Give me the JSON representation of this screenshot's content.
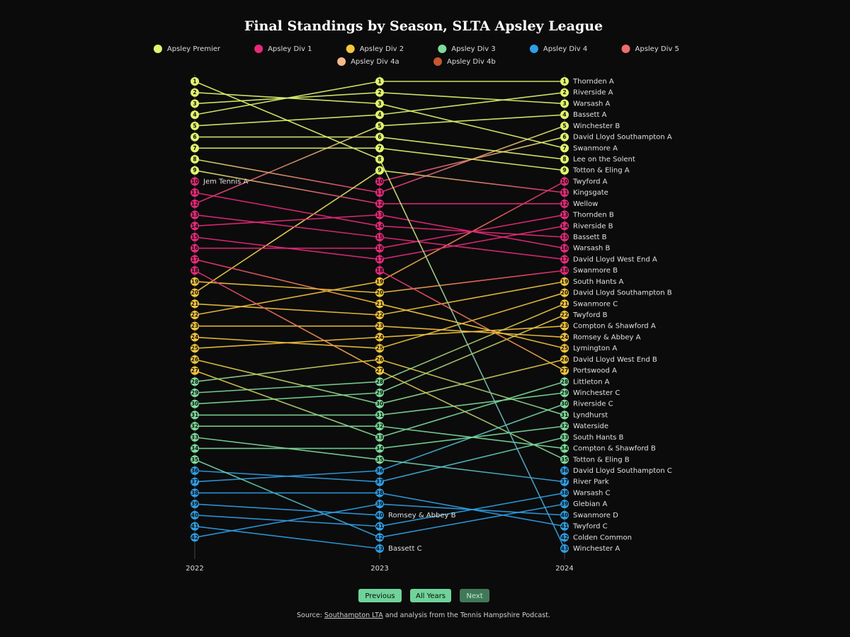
{
  "chart_data": {
    "type": "bump",
    "title": "Final Standings by Season, SLTA Apsley League",
    "years": [
      "2022",
      "2023",
      "2024"
    ],
    "legend": [
      {
        "name": "Apsley Premier",
        "color": "#e2f56f"
      },
      {
        "name": "Apsley Div 1",
        "color": "#e8297a"
      },
      {
        "name": "Apsley Div 2",
        "color": "#f5c63c"
      },
      {
        "name": "Apsley Div 3",
        "color": "#7ddc9b"
      },
      {
        "name": "Apsley Div 4",
        "color": "#2e9fe6"
      },
      {
        "name": "Apsley Div 5",
        "color": "#f06e6a"
      },
      {
        "name": "Apsley Div 4a",
        "color": "#f8b98a"
      },
      {
        "name": "Apsley Div 4b",
        "color": "#c8562e"
      }
    ],
    "teams": [
      {
        "name": "Thornden A",
        "ranks": [
          4,
          1,
          1
        ],
        "divisions": [
          "Apsley Premier",
          "Apsley Premier",
          "Apsley Premier"
        ]
      },
      {
        "name": "Riverside A",
        "ranks": [
          5,
          4,
          2
        ],
        "divisions": [
          "Apsley Premier",
          "Apsley Premier",
          "Apsley Premier"
        ]
      },
      {
        "name": "Warsash A",
        "ranks": [
          3,
          2,
          3
        ],
        "divisions": [
          "Apsley Premier",
          "Apsley Premier",
          "Apsley Premier"
        ]
      },
      {
        "name": "Bassett A",
        "ranks": [
          12,
          5,
          4
        ],
        "divisions": [
          "Apsley Div 1",
          "Apsley Premier",
          "Apsley Premier"
        ]
      },
      {
        "name": "Winchester B",
        "ranks": [
          8,
          11,
          5
        ],
        "divisions": [
          "Apsley Premier",
          "Apsley Div 1",
          "Apsley Premier"
        ]
      },
      {
        "name": "David Lloyd Southampton A",
        "ranks": [
          null,
          10,
          6
        ],
        "divisions": [
          null,
          "Apsley Div 1",
          "Apsley Premier"
        ]
      },
      {
        "name": "Swanmore A",
        "ranks": [
          2,
          3,
          7
        ],
        "divisions": [
          "Apsley Premier",
          "Apsley Premier",
          "Apsley Premier"
        ]
      },
      {
        "name": "Lee on the Solent",
        "ranks": [
          6,
          6,
          8
        ],
        "divisions": [
          "Apsley Premier",
          "Apsley Premier",
          "Apsley Premier"
        ]
      },
      {
        "name": "Totton & Eling A",
        "ranks": [
          7,
          7,
          9
        ],
        "divisions": [
          "Apsley Premier",
          "Apsley Premier",
          "Apsley Premier"
        ]
      },
      {
        "name": "Twyford A",
        "ranks": [
          22,
          19,
          10
        ],
        "divisions": [
          "Apsley Div 2",
          "Apsley Div 2",
          "Apsley Div 1"
        ]
      },
      {
        "name": "Kingsgate",
        "ranks": [
          20,
          9,
          11
        ],
        "divisions": [
          "Apsley Div 2",
          "Apsley Premier",
          "Apsley Div 1"
        ]
      },
      {
        "name": "Wellow",
        "ranks": [
          9,
          12,
          12
        ],
        "divisions": [
          "Apsley Premier",
          "Apsley Div 1",
          "Apsley Div 1"
        ]
      },
      {
        "name": "Thornden B",
        "ranks": [
          16,
          16,
          13
        ],
        "divisions": [
          "Apsley Div 1",
          "Apsley Div 1",
          "Apsley Div 1"
        ]
      },
      {
        "name": "Riverside B",
        "ranks": [
          15,
          17,
          14
        ],
        "divisions": [
          "Apsley Div 1",
          "Apsley Div 1",
          "Apsley Div 1"
        ]
      },
      {
        "name": "Bassett B",
        "ranks": [
          11,
          14,
          15
        ],
        "divisions": [
          "Apsley Div 1",
          "Apsley Div 1",
          "Apsley Div 1"
        ]
      },
      {
        "name": "Warsash B",
        "ranks": [
          14,
          13,
          16
        ],
        "divisions": [
          "Apsley Div 1",
          "Apsley Div 1",
          "Apsley Div 1"
        ]
      },
      {
        "name": "David Lloyd West End A",
        "ranks": [
          13,
          15,
          17
        ],
        "divisions": [
          "Apsley Div 1",
          "Apsley Div 1",
          "Apsley Div 1"
        ]
      },
      {
        "name": "Swanmore B",
        "ranks": [
          19,
          20,
          18
        ],
        "divisions": [
          "Apsley Div 2",
          "Apsley Div 2",
          "Apsley Div 1"
        ]
      },
      {
        "name": "South Hants A",
        "ranks": [
          21,
          22,
          19
        ],
        "divisions": [
          "Apsley Div 2",
          "Apsley Div 2",
          "Apsley Div 2"
        ]
      },
      {
        "name": "David Lloyd Southampton B",
        "ranks": [
          24,
          25,
          20
        ],
        "divisions": [
          "Apsley Div 2",
          "Apsley Div 2",
          "Apsley Div 2"
        ]
      },
      {
        "name": "Swanmore C",
        "ranks": [
          29,
          28,
          21
        ],
        "divisions": [
          "Apsley Div 3",
          "Apsley Div 3",
          "Apsley Div 2"
        ]
      },
      {
        "name": "Twyford B",
        "ranks": [
          30,
          29,
          22
        ],
        "divisions": [
          "Apsley Div 3",
          "Apsley Div 3",
          "Apsley Div 2"
        ]
      },
      {
        "name": "Compton & Shawford A",
        "ranks": [
          25,
          24,
          23
        ],
        "divisions": [
          "Apsley Div 2",
          "Apsley Div 2",
          "Apsley Div 2"
        ]
      },
      {
        "name": "Romsey & Abbey A",
        "ranks": [
          23,
          23,
          24
        ],
        "divisions": [
          "Apsley Div 2",
          "Apsley Div 2",
          "Apsley Div 2"
        ]
      },
      {
        "name": "Lymington A",
        "ranks": [
          17,
          21,
          25
        ],
        "divisions": [
          "Apsley Div 1",
          "Apsley Div 2",
          "Apsley Div 2"
        ]
      },
      {
        "name": "David Lloyd West End B",
        "ranks": [
          26,
          30,
          26
        ],
        "divisions": [
          "Apsley Div 2",
          "Apsley Div 3",
          "Apsley Div 2"
        ]
      },
      {
        "name": "Portswood A",
        "ranks": [
          null,
          18,
          27
        ],
        "divisions": [
          null,
          "Apsley Div 1",
          "Apsley Div 2"
        ]
      },
      {
        "name": "Littleton A",
        "ranks": [
          27,
          33,
          28
        ],
        "divisions": [
          "Apsley Div 2",
          "Apsley Div 3",
          "Apsley Div 3"
        ]
      },
      {
        "name": "Winchester C",
        "ranks": [
          31,
          31,
          29
        ],
        "divisions": [
          "Apsley Div 3",
          "Apsley Div 3",
          "Apsley Div 3"
        ]
      },
      {
        "name": "Riverside C",
        "ranks": [
          37,
          36,
          30
        ],
        "divisions": [
          "Apsley Div 4",
          "Apsley Div 4",
          "Apsley Div 3"
        ]
      },
      {
        "name": "Lyndhurst",
        "ranks": [
          28,
          26,
          31
        ],
        "divisions": [
          "Apsley Div 3",
          "Apsley Div 2",
          "Apsley Div 3"
        ]
      },
      {
        "name": "Waterside",
        "ranks": [
          34,
          34,
          32
        ],
        "divisions": [
          "Apsley Div 3",
          "Apsley Div 3",
          "Apsley Div 3"
        ]
      },
      {
        "name": "South Hants B",
        "ranks": [
          36,
          37,
          33
        ],
        "divisions": [
          "Apsley Div 4",
          "Apsley Div 4",
          "Apsley Div 3"
        ]
      },
      {
        "name": "Compton & Shawford B",
        "ranks": [
          32,
          32,
          34
        ],
        "divisions": [
          "Apsley Div 3",
          "Apsley Div 3",
          "Apsley Div 3"
        ]
      },
      {
        "name": "Totton & Eling B",
        "ranks": [
          18,
          27,
          35
        ],
        "divisions": [
          "Apsley Div 1",
          "Apsley Div 2",
          "Apsley Div 3"
        ]
      },
      {
        "name": "David Lloyd Southampton C",
        "ranks": [
          null,
          null,
          36
        ],
        "divisions": [
          null,
          null,
          "Apsley Div 4"
        ]
      },
      {
        "name": "River Park",
        "ranks": [
          33,
          35,
          37
        ],
        "divisions": [
          "Apsley Div 3",
          "Apsley Div 3",
          "Apsley Div 4"
        ]
      },
      {
        "name": "Warsash C",
        "ranks": [
          40,
          41,
          38
        ],
        "divisions": [
          "Apsley Div 4",
          "Apsley Div 4",
          "Apsley Div 4"
        ]
      },
      {
        "name": "Glebian A",
        "ranks": [
          35,
          42,
          39
        ],
        "divisions": [
          "Apsley Div 3",
          "Apsley Div 4",
          "Apsley Div 4"
        ]
      },
      {
        "name": "Swanmore D",
        "ranks": [
          42,
          39,
          40
        ],
        "divisions": [
          "Apsley Div 4",
          "Apsley Div 4",
          "Apsley Div 4"
        ]
      },
      {
        "name": "Twyford C",
        "ranks": [
          38,
          38,
          41
        ],
        "divisions": [
          "Apsley Div 4",
          "Apsley Div 4",
          "Apsley Div 4"
        ]
      },
      {
        "name": "Colden Common",
        "ranks": [
          null,
          null,
          42
        ],
        "divisions": [
          null,
          null,
          "Apsley Div 4"
        ]
      },
      {
        "name": "Winchester A",
        "ranks": [
          1,
          8,
          43
        ],
        "divisions": [
          "Apsley Premier",
          "Apsley Premier",
          "Apsley Div 4"
        ]
      },
      {
        "name": "Romsey & Abbey B",
        "ranks": [
          39,
          40,
          null
        ],
        "divisions": [
          "Apsley Div 4",
          "Apsley Div 4",
          null
        ]
      },
      {
        "name": "Bassett C",
        "ranks": [
          41,
          43,
          null
        ],
        "divisions": [
          "Apsley Div 4",
          "Apsley Div 4",
          null
        ]
      },
      {
        "name": "Jem Tennis A",
        "ranks": [
          10,
          null,
          null
        ],
        "divisions": [
          "Apsley Div 1",
          null,
          null
        ]
      }
    ]
  },
  "controls": {
    "previous": "Previous",
    "all_years": "All Years",
    "next": "Next"
  },
  "source": {
    "prefix": "Source: ",
    "link": "Southampton LTA",
    "suffix": " and analysis from the Tennis Hampshire Podcast."
  }
}
